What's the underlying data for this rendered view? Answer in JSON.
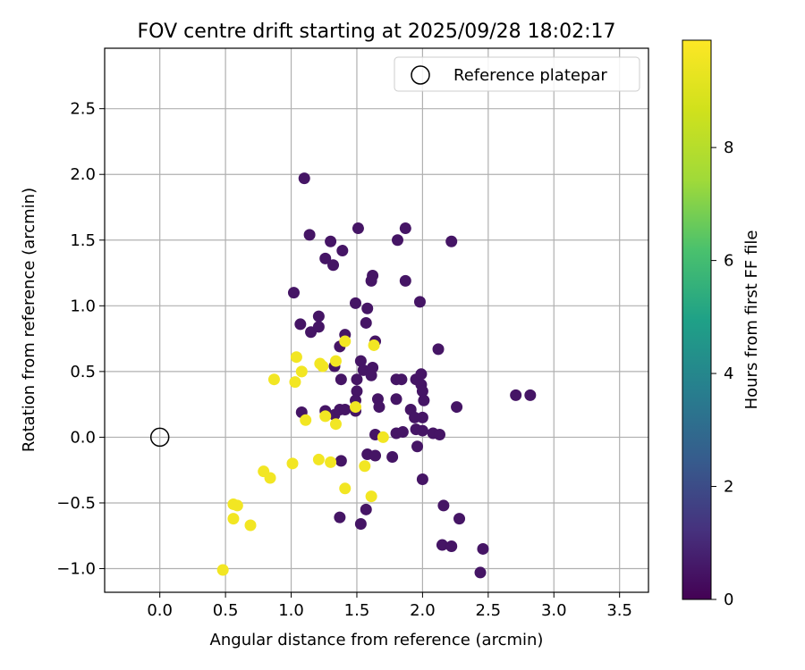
{
  "chart_data": {
    "type": "scatter",
    "title": "FOV centre drift starting at 2025/09/28 18:02:17",
    "xlabel": "Angular distance from reference (arcmin)",
    "ylabel": "Rotation from reference (arcmin)",
    "xlim": [
      -0.42,
      3.72
    ],
    "ylim": [
      -1.18,
      2.96
    ],
    "xticks": [
      "0.0",
      "0.5",
      "1.0",
      "1.5",
      "2.0",
      "2.5",
      "3.0",
      "3.5"
    ],
    "xtick_values": [
      0.0,
      0.5,
      1.0,
      1.5,
      2.0,
      2.5,
      3.0,
      3.5
    ],
    "yticks": [
      "−1.0",
      "−0.5",
      "0.0",
      "0.5",
      "1.0",
      "1.5",
      "2.0",
      "2.5"
    ],
    "ytick_values": [
      -1.0,
      -0.5,
      0.0,
      0.5,
      1.0,
      1.5,
      2.0,
      2.5
    ],
    "grid": true,
    "legend": {
      "placement": "top-right",
      "entries": [
        "Reference platepar"
      ]
    },
    "reference_point": {
      "name": "Reference platepar",
      "x": 0.0,
      "y": 0.0
    },
    "colorbar": {
      "label": "Hours from first FF file",
      "colormap": "viridis",
      "range": [
        0,
        9.9
      ],
      "ticks": [
        "0",
        "2",
        "4",
        "6",
        "8"
      ],
      "tick_values": [
        0,
        2,
        4,
        6,
        8
      ]
    },
    "series": [
      {
        "hours": 0.5,
        "points": [
          [
            1.1,
            1.97
          ],
          [
            1.14,
            1.54
          ],
          [
            1.3,
            1.49
          ],
          [
            1.26,
            1.36
          ],
          [
            1.32,
            1.31
          ],
          [
            1.39,
            1.42
          ],
          [
            1.51,
            1.59
          ],
          [
            1.81,
            1.5
          ],
          [
            1.87,
            1.59
          ],
          [
            2.22,
            1.49
          ],
          [
            1.62,
            1.23
          ],
          [
            1.61,
            1.19
          ],
          [
            1.87,
            1.19
          ],
          [
            1.02,
            1.1
          ],
          [
            1.49,
            1.02
          ],
          [
            1.58,
            0.98
          ],
          [
            1.98,
            1.03
          ],
          [
            1.07,
            0.86
          ],
          [
            1.21,
            0.92
          ],
          [
            1.15,
            0.8
          ],
          [
            1.21,
            0.84
          ],
          [
            1.57,
            0.87
          ],
          [
            1.41,
            0.78
          ],
          [
            1.64,
            0.73
          ],
          [
            1.37,
            0.69
          ],
          [
            2.12,
            0.67
          ],
          [
            1.33,
            0.54
          ],
          [
            1.53,
            0.58
          ],
          [
            1.55,
            0.51
          ],
          [
            1.62,
            0.53
          ],
          [
            1.61,
            0.47
          ],
          [
            1.38,
            0.44
          ],
          [
            1.5,
            0.44
          ],
          [
            1.8,
            0.44
          ],
          [
            1.84,
            0.44
          ],
          [
            1.95,
            0.44
          ],
          [
            1.99,
            0.48
          ],
          [
            1.99,
            0.4
          ],
          [
            2.0,
            0.35
          ],
          [
            2.01,
            0.28
          ],
          [
            1.66,
            0.29
          ],
          [
            1.8,
            0.29
          ],
          [
            1.5,
            0.35
          ],
          [
            1.49,
            0.28
          ],
          [
            1.08,
            0.19
          ],
          [
            1.26,
            0.2
          ],
          [
            1.33,
            0.17
          ],
          [
            1.37,
            0.21
          ],
          [
            1.41,
            0.21
          ],
          [
            1.49,
            0.2
          ],
          [
            1.67,
            0.23
          ],
          [
            1.91,
            0.21
          ],
          [
            1.94,
            0.15
          ],
          [
            2.0,
            0.15
          ],
          [
            2.26,
            0.23
          ],
          [
            2.71,
            0.32
          ],
          [
            2.82,
            0.32
          ],
          [
            1.64,
            0.02
          ],
          [
            1.8,
            0.03
          ],
          [
            1.85,
            0.04
          ],
          [
            1.95,
            0.06
          ],
          [
            2.0,
            0.05
          ],
          [
            2.08,
            0.03
          ],
          [
            2.13,
            0.02
          ],
          [
            1.96,
            -0.07
          ],
          [
            1.38,
            -0.18
          ],
          [
            1.58,
            -0.13
          ],
          [
            1.64,
            -0.14
          ],
          [
            1.77,
            -0.15
          ],
          [
            2.0,
            -0.32
          ],
          [
            1.37,
            -0.61
          ],
          [
            1.53,
            -0.66
          ],
          [
            1.57,
            -0.55
          ],
          [
            2.16,
            -0.52
          ],
          [
            2.28,
            -0.62
          ],
          [
            2.15,
            -0.82
          ],
          [
            2.22,
            -0.83
          ],
          [
            2.46,
            -0.85
          ],
          [
            2.44,
            -1.03
          ]
        ]
      },
      {
        "hours": 9.6,
        "points": [
          [
            1.04,
            0.61
          ],
          [
            1.08,
            0.5
          ],
          [
            0.87,
            0.44
          ],
          [
            1.03,
            0.42
          ],
          [
            1.22,
            0.56
          ],
          [
            1.24,
            0.54
          ],
          [
            1.34,
            0.58
          ],
          [
            1.41,
            0.73
          ],
          [
            1.63,
            0.7
          ],
          [
            1.49,
            0.23
          ],
          [
            1.11,
            0.13
          ],
          [
            1.26,
            0.16
          ],
          [
            1.34,
            0.1
          ],
          [
            1.7,
            0.0
          ],
          [
            1.01,
            -0.2
          ],
          [
            1.21,
            -0.17
          ],
          [
            1.3,
            -0.19
          ],
          [
            1.56,
            -0.22
          ],
          [
            0.79,
            -0.26
          ],
          [
            0.84,
            -0.31
          ],
          [
            1.41,
            -0.39
          ],
          [
            1.61,
            -0.45
          ],
          [
            0.56,
            -0.51
          ],
          [
            0.59,
            -0.52
          ],
          [
            0.56,
            -0.62
          ],
          [
            0.69,
            -0.67
          ],
          [
            0.48,
            -1.01
          ]
        ]
      }
    ]
  }
}
